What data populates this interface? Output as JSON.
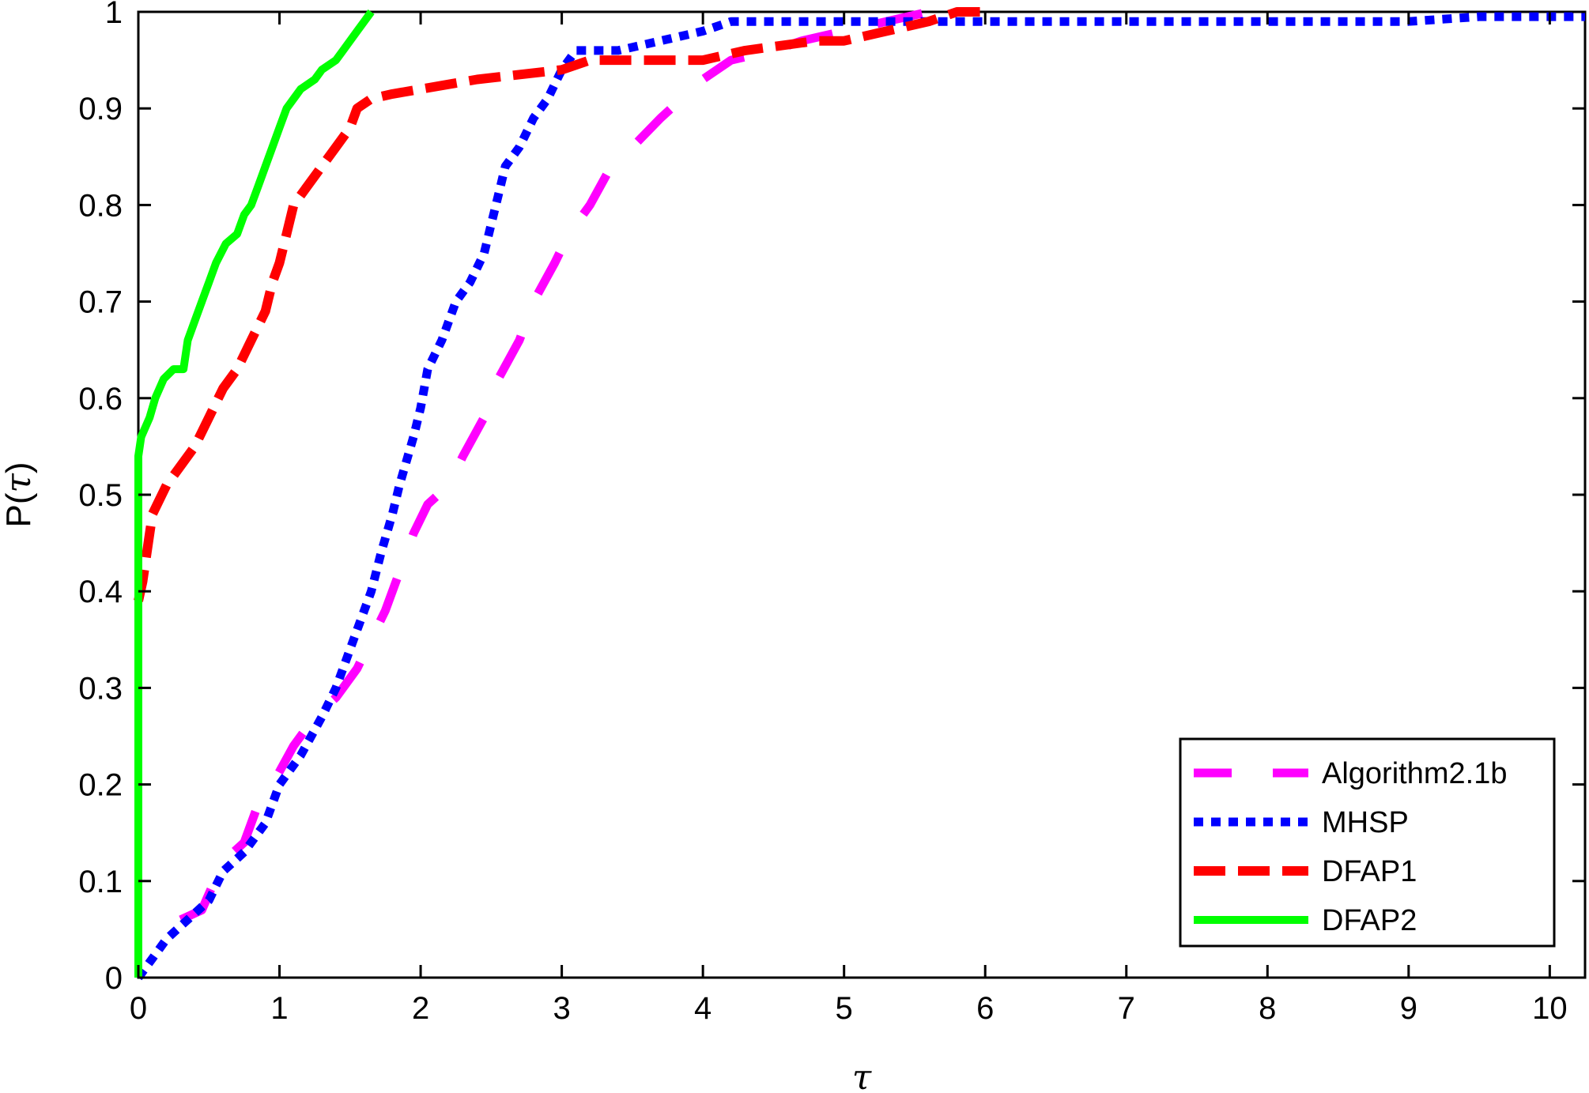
{
  "chart_data": {
    "type": "line",
    "xlabel": "τ",
    "ylabel_prefix": "P(",
    "ylabel_symbol": "τ",
    "ylabel_suffix": ")",
    "xlim": [
      0,
      10.25
    ],
    "ylim": [
      0,
      1
    ],
    "x_ticks": [
      "0",
      "1",
      "2",
      "3",
      "4",
      "5",
      "6",
      "7",
      "8",
      "9",
      "10"
    ],
    "y_ticks": [
      "0",
      "0.1",
      "0.2",
      "0.3",
      "0.4",
      "0.5",
      "0.6",
      "0.7",
      "0.8",
      "0.9",
      "1"
    ],
    "grid": false,
    "legend_position": "bottom-right",
    "series": [
      {
        "name": "Algorithm2.1b",
        "color": "#ff00ff",
        "dash": "dashed-long",
        "points": [
          [
            0.3,
            0.06
          ],
          [
            0.45,
            0.07
          ],
          [
            0.6,
            0.12
          ],
          [
            0.75,
            0.14
          ],
          [
            0.85,
            0.18
          ],
          [
            0.95,
            0.2
          ],
          [
            1.1,
            0.24
          ],
          [
            1.25,
            0.27
          ],
          [
            1.4,
            0.29
          ],
          [
            1.55,
            0.32
          ],
          [
            1.65,
            0.35
          ],
          [
            1.75,
            0.38
          ],
          [
            1.85,
            0.42
          ],
          [
            1.95,
            0.46
          ],
          [
            2.05,
            0.49
          ],
          [
            2.2,
            0.51
          ],
          [
            2.3,
            0.54
          ],
          [
            2.45,
            0.58
          ],
          [
            2.55,
            0.62
          ],
          [
            2.7,
            0.66
          ],
          [
            2.8,
            0.7
          ],
          [
            2.95,
            0.74
          ],
          [
            3.05,
            0.77
          ],
          [
            3.2,
            0.8
          ],
          [
            3.35,
            0.84
          ],
          [
            3.5,
            0.86
          ],
          [
            3.7,
            0.89
          ],
          [
            3.85,
            0.91
          ],
          [
            4.0,
            0.93
          ],
          [
            4.2,
            0.95
          ],
          [
            4.5,
            0.96
          ],
          [
            4.7,
            0.97
          ],
          [
            5.0,
            0.98
          ],
          [
            5.3,
            0.99
          ],
          [
            5.6,
            1.0
          ]
        ]
      },
      {
        "name": "MHSP",
        "color": "#0000ff",
        "dash": "dotted",
        "points": [
          [
            0,
            0.0
          ],
          [
            0.1,
            0.02
          ],
          [
            0.2,
            0.04
          ],
          [
            0.35,
            0.06
          ],
          [
            0.5,
            0.08
          ],
          [
            0.6,
            0.11
          ],
          [
            0.75,
            0.13
          ],
          [
            0.9,
            0.16
          ],
          [
            1.0,
            0.2
          ],
          [
            1.15,
            0.23
          ],
          [
            1.3,
            0.27
          ],
          [
            1.4,
            0.3
          ],
          [
            1.5,
            0.34
          ],
          [
            1.55,
            0.36
          ],
          [
            1.65,
            0.4
          ],
          [
            1.72,
            0.44
          ],
          [
            1.8,
            0.48
          ],
          [
            1.85,
            0.51
          ],
          [
            1.95,
            0.56
          ],
          [
            2.0,
            0.59
          ],
          [
            2.05,
            0.63
          ],
          [
            2.15,
            0.66
          ],
          [
            2.25,
            0.7
          ],
          [
            2.35,
            0.72
          ],
          [
            2.45,
            0.75
          ],
          [
            2.5,
            0.78
          ],
          [
            2.55,
            0.81
          ],
          [
            2.6,
            0.84
          ],
          [
            2.7,
            0.86
          ],
          [
            2.8,
            0.89
          ],
          [
            2.9,
            0.91
          ],
          [
            3.0,
            0.94
          ],
          [
            3.1,
            0.96
          ],
          [
            3.4,
            0.96
          ],
          [
            3.7,
            0.97
          ],
          [
            4.0,
            0.98
          ],
          [
            4.2,
            0.99
          ],
          [
            5.0,
            0.99
          ],
          [
            6.0,
            0.99
          ],
          [
            8.0,
            0.99
          ],
          [
            9.0,
            0.99
          ],
          [
            9.5,
            0.995
          ],
          [
            10.25,
            0.995
          ]
        ]
      },
      {
        "name": "DFAP1",
        "color": "#ff0000",
        "dash": "dashed",
        "points": [
          [
            0,
            0.39
          ],
          [
            0.03,
            0.41
          ],
          [
            0.07,
            0.45
          ],
          [
            0.1,
            0.48
          ],
          [
            0.2,
            0.51
          ],
          [
            0.3,
            0.53
          ],
          [
            0.4,
            0.55
          ],
          [
            0.5,
            0.58
          ],
          [
            0.6,
            0.61
          ],
          [
            0.7,
            0.63
          ],
          [
            0.8,
            0.66
          ],
          [
            0.9,
            0.69
          ],
          [
            0.95,
            0.72
          ],
          [
            1.0,
            0.74
          ],
          [
            1.05,
            0.77
          ],
          [
            1.1,
            0.8
          ],
          [
            1.2,
            0.82
          ],
          [
            1.3,
            0.84
          ],
          [
            1.4,
            0.86
          ],
          [
            1.5,
            0.88
          ],
          [
            1.55,
            0.9
          ],
          [
            1.65,
            0.91
          ],
          [
            1.8,
            0.915
          ],
          [
            2.0,
            0.92
          ],
          [
            2.4,
            0.93
          ],
          [
            3.0,
            0.94
          ],
          [
            3.2,
            0.95
          ],
          [
            4.0,
            0.95
          ],
          [
            4.3,
            0.96
          ],
          [
            4.8,
            0.97
          ],
          [
            5.0,
            0.97
          ],
          [
            5.3,
            0.98
          ],
          [
            5.6,
            0.99
          ],
          [
            5.8,
            1.0
          ],
          [
            6.0,
            1.0
          ]
        ]
      },
      {
        "name": "DFAP2",
        "color": "#00ff00",
        "dash": "solid",
        "points": [
          [
            0,
            0.0
          ],
          [
            0,
            0.54
          ],
          [
            0.02,
            0.56
          ],
          [
            0.08,
            0.58
          ],
          [
            0.12,
            0.6
          ],
          [
            0.18,
            0.62
          ],
          [
            0.25,
            0.63
          ],
          [
            0.32,
            0.63
          ],
          [
            0.35,
            0.66
          ],
          [
            0.4,
            0.68
          ],
          [
            0.45,
            0.7
          ],
          [
            0.5,
            0.72
          ],
          [
            0.55,
            0.74
          ],
          [
            0.62,
            0.76
          ],
          [
            0.7,
            0.77
          ],
          [
            0.75,
            0.79
          ],
          [
            0.8,
            0.8
          ],
          [
            0.85,
            0.82
          ],
          [
            0.9,
            0.84
          ],
          [
            0.95,
            0.86
          ],
          [
            1.0,
            0.88
          ],
          [
            1.05,
            0.9
          ],
          [
            1.1,
            0.91
          ],
          [
            1.15,
            0.92
          ],
          [
            1.25,
            0.93
          ],
          [
            1.3,
            0.94
          ],
          [
            1.4,
            0.95
          ],
          [
            1.45,
            0.96
          ],
          [
            1.5,
            0.97
          ],
          [
            1.55,
            0.98
          ],
          [
            1.6,
            0.99
          ],
          [
            1.65,
            1.0
          ]
        ]
      }
    ]
  }
}
